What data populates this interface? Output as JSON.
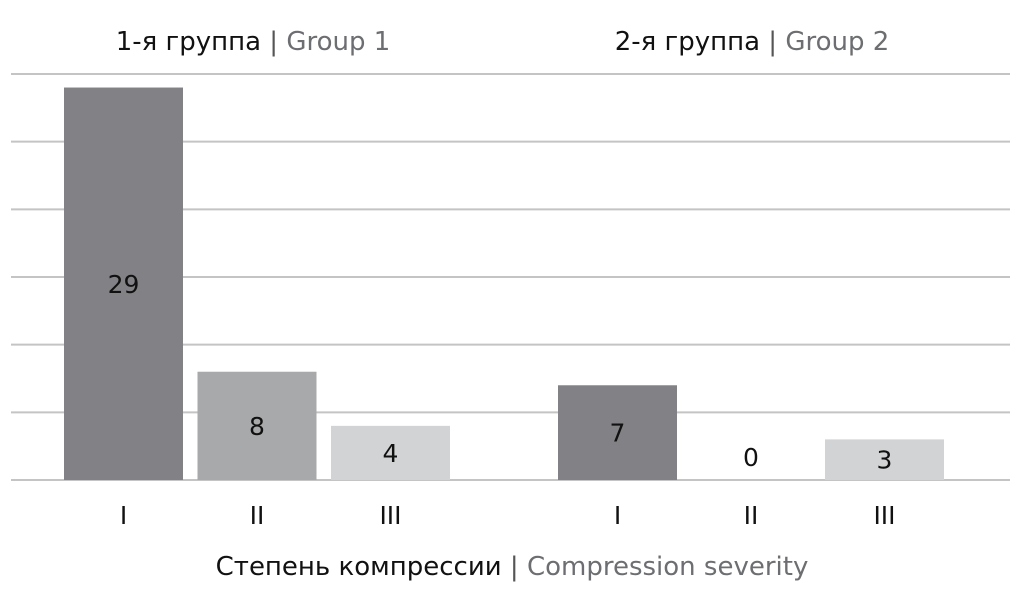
{
  "chart_data": {
    "type": "bar",
    "groups": [
      {
        "title_ru": "1-я группа",
        "title_en": "Group 1"
      },
      {
        "title_ru": "2-я группа",
        "title_en": "Group 2"
      }
    ],
    "categories": [
      "I",
      "II",
      "III"
    ],
    "series": [
      {
        "group": 0,
        "values": [
          29,
          8,
          4
        ]
      },
      {
        "group": 1,
        "values": [
          7,
          0,
          3
        ]
      }
    ],
    "separator": "|",
    "xlabel_ru": "Степень компрессии",
    "xlabel_en": "Compression severity",
    "ylim": [
      0,
      30
    ],
    "y_grid_step": 5,
    "grid": true,
    "colors": {
      "I": "#828286",
      "II": "#a8a9ab",
      "III": "#d2d3d4",
      "grid": "#c4c4c4",
      "text_ru": "#111111",
      "text_en": "#6d6e71"
    }
  }
}
